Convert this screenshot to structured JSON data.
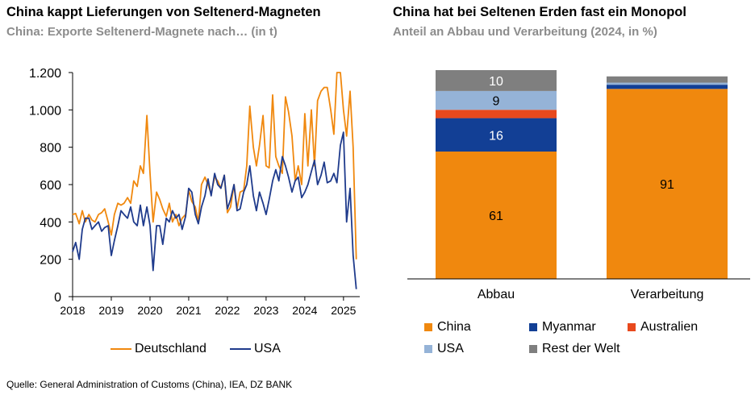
{
  "charts": {
    "left": {
      "title": "China kappt Lieferungen von Seltenerd-Magneten",
      "subtitle": "China: Exporte Seltenerd-Magnete nach… (in t)"
    },
    "right": {
      "title": "China hat bei Seltenen Erden fast ein Monopol",
      "subtitle": "Anteil an Abbau und Verarbeitung (2024, in %)"
    }
  },
  "source": "Quelle: General Administration of Customs (China), IEA, DZ BANK",
  "colors": {
    "deutschland": "#f0880e",
    "usa": "#1f3b8c",
    "china": "#f0880e",
    "myanmar": "#123f95",
    "australien": "#e8491d",
    "usa_bar": "#95b3d7",
    "rest": "#7f7f7f",
    "axis": "#000000"
  },
  "chart_data": [
    {
      "type": "line",
      "ylim": [
        0,
        1200
      ],
      "yticks": [
        0,
        200,
        400,
        600,
        800,
        1000,
        1200
      ],
      "ytick_labels": [
        "0",
        "200",
        "400",
        "600",
        "800",
        "1.000",
        "1.200"
      ],
      "xlim": [
        2018,
        2025.42
      ],
      "xticks": [
        2018,
        2019,
        2020,
        2021,
        2022,
        2023,
        2024,
        2025
      ],
      "xtick_labels": [
        "2018",
        "2019",
        "2020",
        "2021",
        "2022",
        "2023",
        "2024",
        "2025"
      ],
      "legend_position": "bottom",
      "series": [
        {
          "name": "Deutschland",
          "x": [
            2018,
            2018.08,
            2018.17,
            2018.25,
            2018.33,
            2018.42,
            2018.5,
            2018.58,
            2018.67,
            2018.75,
            2018.83,
            2018.92,
            2019,
            2019.08,
            2019.17,
            2019.25,
            2019.33,
            2019.42,
            2019.5,
            2019.58,
            2019.67,
            2019.75,
            2019.83,
            2019.92,
            2020,
            2020.08,
            2020.17,
            2020.25,
            2020.33,
            2020.42,
            2020.5,
            2020.58,
            2020.67,
            2020.75,
            2020.83,
            2020.92,
            2021,
            2021.08,
            2021.17,
            2021.25,
            2021.33,
            2021.42,
            2021.5,
            2021.58,
            2021.67,
            2021.75,
            2021.83,
            2021.92,
            2022,
            2022.08,
            2022.17,
            2022.25,
            2022.33,
            2022.42,
            2022.5,
            2022.58,
            2022.67,
            2022.75,
            2022.83,
            2022.92,
            2023,
            2023.08,
            2023.17,
            2023.25,
            2023.33,
            2023.42,
            2023.5,
            2023.58,
            2023.67,
            2023.75,
            2023.83,
            2023.92,
            2024,
            2024.08,
            2024.17,
            2024.25,
            2024.33,
            2024.42,
            2024.5,
            2024.58,
            2024.67,
            2024.75,
            2024.83,
            2024.92,
            2025,
            2025.08,
            2025.17,
            2025.25,
            2025.33
          ],
          "values": [
            440,
            445,
            390,
            460,
            400,
            440,
            410,
            400,
            440,
            450,
            470,
            400,
            330,
            440,
            500,
            490,
            500,
            530,
            500,
            620,
            590,
            700,
            660,
            970,
            660,
            400,
            560,
            520,
            470,
            430,
            500,
            400,
            440,
            380,
            420,
            440,
            570,
            510,
            480,
            400,
            600,
            640,
            600,
            550,
            640,
            620,
            580,
            650,
            450,
            480,
            600,
            470,
            560,
            570,
            700,
            1020,
            800,
            700,
            810,
            970,
            700,
            690,
            1080,
            750,
            700,
            660,
            1070,
            990,
            860,
            620,
            700,
            600,
            980,
            700,
            1000,
            700,
            1050,
            1100,
            1120,
            1120,
            1000,
            870,
            1200,
            1200,
            1000,
            860,
            1100,
            800,
            200
          ]
        },
        {
          "name": "USA",
          "x": [
            2018,
            2018.08,
            2018.17,
            2018.25,
            2018.33,
            2018.42,
            2018.5,
            2018.58,
            2018.67,
            2018.75,
            2018.83,
            2018.92,
            2019,
            2019.08,
            2019.17,
            2019.25,
            2019.33,
            2019.42,
            2019.5,
            2019.58,
            2019.67,
            2019.75,
            2019.83,
            2019.92,
            2020,
            2020.08,
            2020.17,
            2020.25,
            2020.33,
            2020.42,
            2020.5,
            2020.58,
            2020.67,
            2020.75,
            2020.83,
            2020.92,
            2021,
            2021.08,
            2021.17,
            2021.25,
            2021.33,
            2021.42,
            2021.5,
            2021.58,
            2021.67,
            2021.75,
            2021.83,
            2021.92,
            2022,
            2022.08,
            2022.17,
            2022.25,
            2022.33,
            2022.42,
            2022.5,
            2022.58,
            2022.67,
            2022.75,
            2022.83,
            2022.92,
            2023,
            2023.08,
            2023.17,
            2023.25,
            2023.33,
            2023.42,
            2023.5,
            2023.58,
            2023.67,
            2023.75,
            2023.83,
            2023.92,
            2024,
            2024.08,
            2024.17,
            2024.25,
            2024.33,
            2024.42,
            2024.5,
            2024.58,
            2024.67,
            2024.75,
            2024.83,
            2024.92,
            2025,
            2025.08,
            2025.17,
            2025.25,
            2025.33
          ],
          "values": [
            240,
            290,
            200,
            360,
            420,
            420,
            360,
            380,
            400,
            350,
            370,
            380,
            220,
            300,
            380,
            460,
            440,
            420,
            480,
            400,
            380,
            490,
            380,
            480,
            380,
            140,
            380,
            380,
            280,
            420,
            400,
            460,
            420,
            440,
            360,
            430,
            580,
            560,
            440,
            390,
            480,
            540,
            630,
            540,
            660,
            600,
            580,
            650,
            470,
            520,
            600,
            460,
            470,
            560,
            600,
            700,
            540,
            460,
            560,
            500,
            440,
            520,
            620,
            680,
            620,
            750,
            700,
            640,
            560,
            620,
            640,
            530,
            560,
            600,
            670,
            730,
            600,
            650,
            720,
            610,
            620,
            660,
            610,
            810,
            880,
            400,
            580,
            220,
            40
          ]
        }
      ]
    },
    {
      "type": "bar",
      "stacked": true,
      "categories": [
        "Abbau",
        "Verarbeitung"
      ],
      "ylim": [
        0,
        100
      ],
      "legend_position": "bottom",
      "series": [
        {
          "name": "China",
          "values": [
            61,
            91
          ],
          "labels": [
            "61",
            "91"
          ]
        },
        {
          "name": "Myanmar",
          "values": [
            16,
            2
          ],
          "labels": [
            "16",
            ""
          ]
        },
        {
          "name": "Australien",
          "values": [
            4,
            0
          ],
          "labels": [
            "",
            ""
          ]
        },
        {
          "name": "USA",
          "values": [
            9,
            1
          ],
          "labels": [
            "9",
            ""
          ]
        },
        {
          "name": "Rest der Welt",
          "values": [
            10,
            3
          ],
          "labels": [
            "10",
            ""
          ]
        }
      ]
    }
  ]
}
